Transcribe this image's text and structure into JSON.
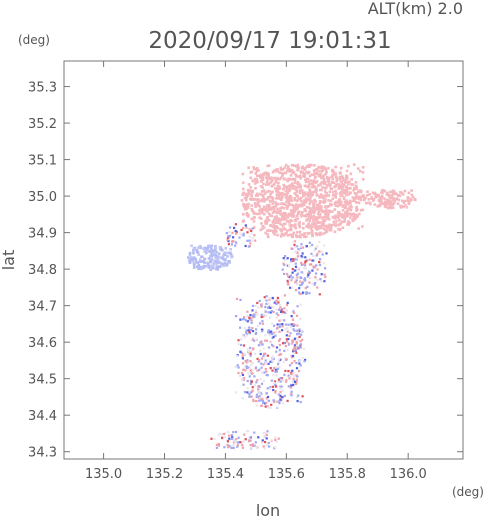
{
  "header": {
    "altitude_label": "ALT(km) 2.0",
    "timestamp": "2020/09/17 19:01:31"
  },
  "chart_data": {
    "type": "scatter",
    "title": "2020/09/17 19:01:31",
    "xlabel": "lon",
    "ylabel": "lat",
    "x_unit": "(deg)",
    "y_unit": "(deg)",
    "xlim": [
      134.87,
      136.18
    ],
    "ylim": [
      34.28,
      35.37
    ],
    "x_ticks": [
      135.0,
      135.2,
      135.4,
      135.6,
      135.8,
      136.0
    ],
    "x_tick_labels": [
      "135.0",
      "135.2",
      "135.4",
      "135.6",
      "135.8",
      "136.0"
    ],
    "y_ticks": [
      34.3,
      34.4,
      34.5,
      34.6,
      34.7,
      34.8,
      34.9,
      35.0,
      35.1,
      35.2,
      35.3
    ],
    "y_tick_labels": [
      "34.3",
      "34.4",
      "34.5",
      "34.6",
      "34.7",
      "34.8",
      "34.9",
      "35.0",
      "35.1",
      "35.2",
      "35.3"
    ],
    "grid": false,
    "colors": {
      "positive": "#f2a0a8",
      "negative": "#9ea8f2",
      "strong_positive": "#e0505a",
      "strong_negative": "#5060e0"
    },
    "regions": [
      {
        "name": "north-pink-mass",
        "x": [
          135.45,
          135.85
        ],
        "y": [
          34.89,
          35.09
        ],
        "tone": "positive"
      },
      {
        "name": "east-pink-tail",
        "x": [
          135.85,
          136.02
        ],
        "y": [
          34.97,
          35.02
        ],
        "tone": "positive"
      },
      {
        "name": "west-blue-mass",
        "x": [
          135.27,
          135.42
        ],
        "y": [
          34.8,
          34.87
        ],
        "tone": "negative"
      },
      {
        "name": "central-wedge",
        "x": [
          135.4,
          135.5
        ],
        "y": [
          34.86,
          34.93
        ],
        "tone": "mixed"
      },
      {
        "name": "mid-ring-speckle",
        "x": [
          135.58,
          135.73
        ],
        "y": [
          34.73,
          34.88
        ],
        "tone": "mixed"
      },
      {
        "name": "south-mixed-mass",
        "x": [
          135.43,
          135.66
        ],
        "y": [
          34.42,
          34.73
        ],
        "tone": "mixed"
      },
      {
        "name": "southern-spots",
        "x": [
          135.34,
          135.58
        ],
        "y": [
          34.31,
          34.36
        ],
        "tone": "mixed"
      }
    ]
  }
}
